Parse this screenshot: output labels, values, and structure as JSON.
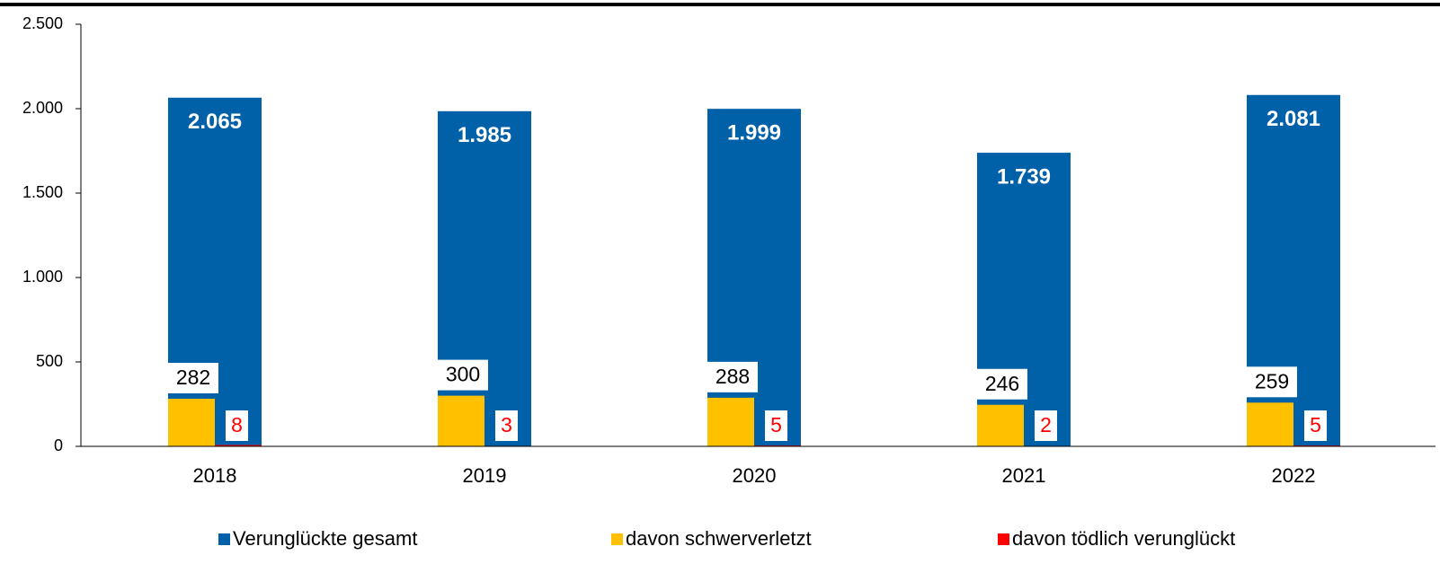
{
  "chart_data": {
    "type": "bar",
    "categories": [
      "2018",
      "2019",
      "2020",
      "2021",
      "2022"
    ],
    "series": [
      {
        "name": "Verunglückte gesamt",
        "color": "#0060a8",
        "values": [
          2065,
          1985,
          1999,
          1739,
          2081
        ],
        "value_labels": [
          "2.065",
          "1.985",
          "1.999",
          "1.739",
          "2.081"
        ]
      },
      {
        "name": "davon schwerverletzt",
        "color": "#ffc000",
        "values": [
          282,
          300,
          288,
          246,
          259
        ]
      },
      {
        "name": "davon tödlich verunglückt",
        "color": "#ff0000",
        "values": [
          8,
          3,
          5,
          2,
          5
        ]
      }
    ],
    "ylim": [
      0,
      2500
    ],
    "yticks": [
      {
        "value": 0,
        "label": "0"
      },
      {
        "value": 500,
        "label": "500"
      },
      {
        "value": 1000,
        "label": "1.000"
      },
      {
        "value": 1500,
        "label": "1.500"
      },
      {
        "value": 2000,
        "label": "2.000"
      },
      {
        "value": 2500,
        "label": "2.500"
      }
    ],
    "legend": "bottom"
  }
}
